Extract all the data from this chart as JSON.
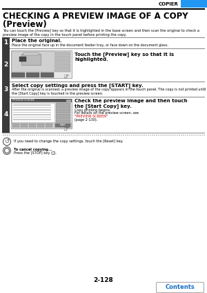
{
  "bg_color": "#ffffff",
  "header_blue": "#2196f3",
  "header_text": "COPIER",
  "title_line1": "CHECKING A PREVIEW IMAGE OF A COPY",
  "title_line2": "(Preview)",
  "intro_text": "You can touch the [Preview] key so that it is highlighted in the base screen and then scan the original to check a preview image of the copy in the touch panel before printing the copy.",
  "step1_num": "1",
  "step1_bold": "Place the original.",
  "step1_text": "Place the original face up in the document feeder tray, or face down on the document glass.",
  "step2_num": "2",
  "step2_bold": "Touch the [Preview] key so that it is\nhighlighted.",
  "step3_num": "3",
  "step3_bold": "Select copy settings and press the [START] key.",
  "step3_text": "After the original is scanned, a preview image of the copy appears in the touch panel. The copy is not printed until the [Start Copy] key is touched in the preview screen.",
  "step4_num": "4",
  "step4_bold": "Check the preview image and then touch\nthe [Start Copy] key.",
  "step4_text1": "Copy printing begins.",
  "step4_text2": "For details on the preview screen, see ",
  "step4_link": "\"PREVIEW SCREEN\"",
  "step4_text3": "(page 2-130).",
  "note1_text": "If you need to change the copy settings, touch the [Reset] key.",
  "note2_bold": "To cancel copying...",
  "note2_text": "Press the [STOP] key (Ⓢ).",
  "page_num": "2-128",
  "contents_text": "Contents",
  "link_color": "#cc0000",
  "step_bg": "#3a3a3a",
  "step_fg": "#ffffff",
  "gray_border": "#888888",
  "blue_accent": "#1a6fc4",
  "dark_gray": "#444444",
  "med_gray": "#888888",
  "light_gray": "#cccccc",
  "lighter_gray": "#e8e8e8"
}
